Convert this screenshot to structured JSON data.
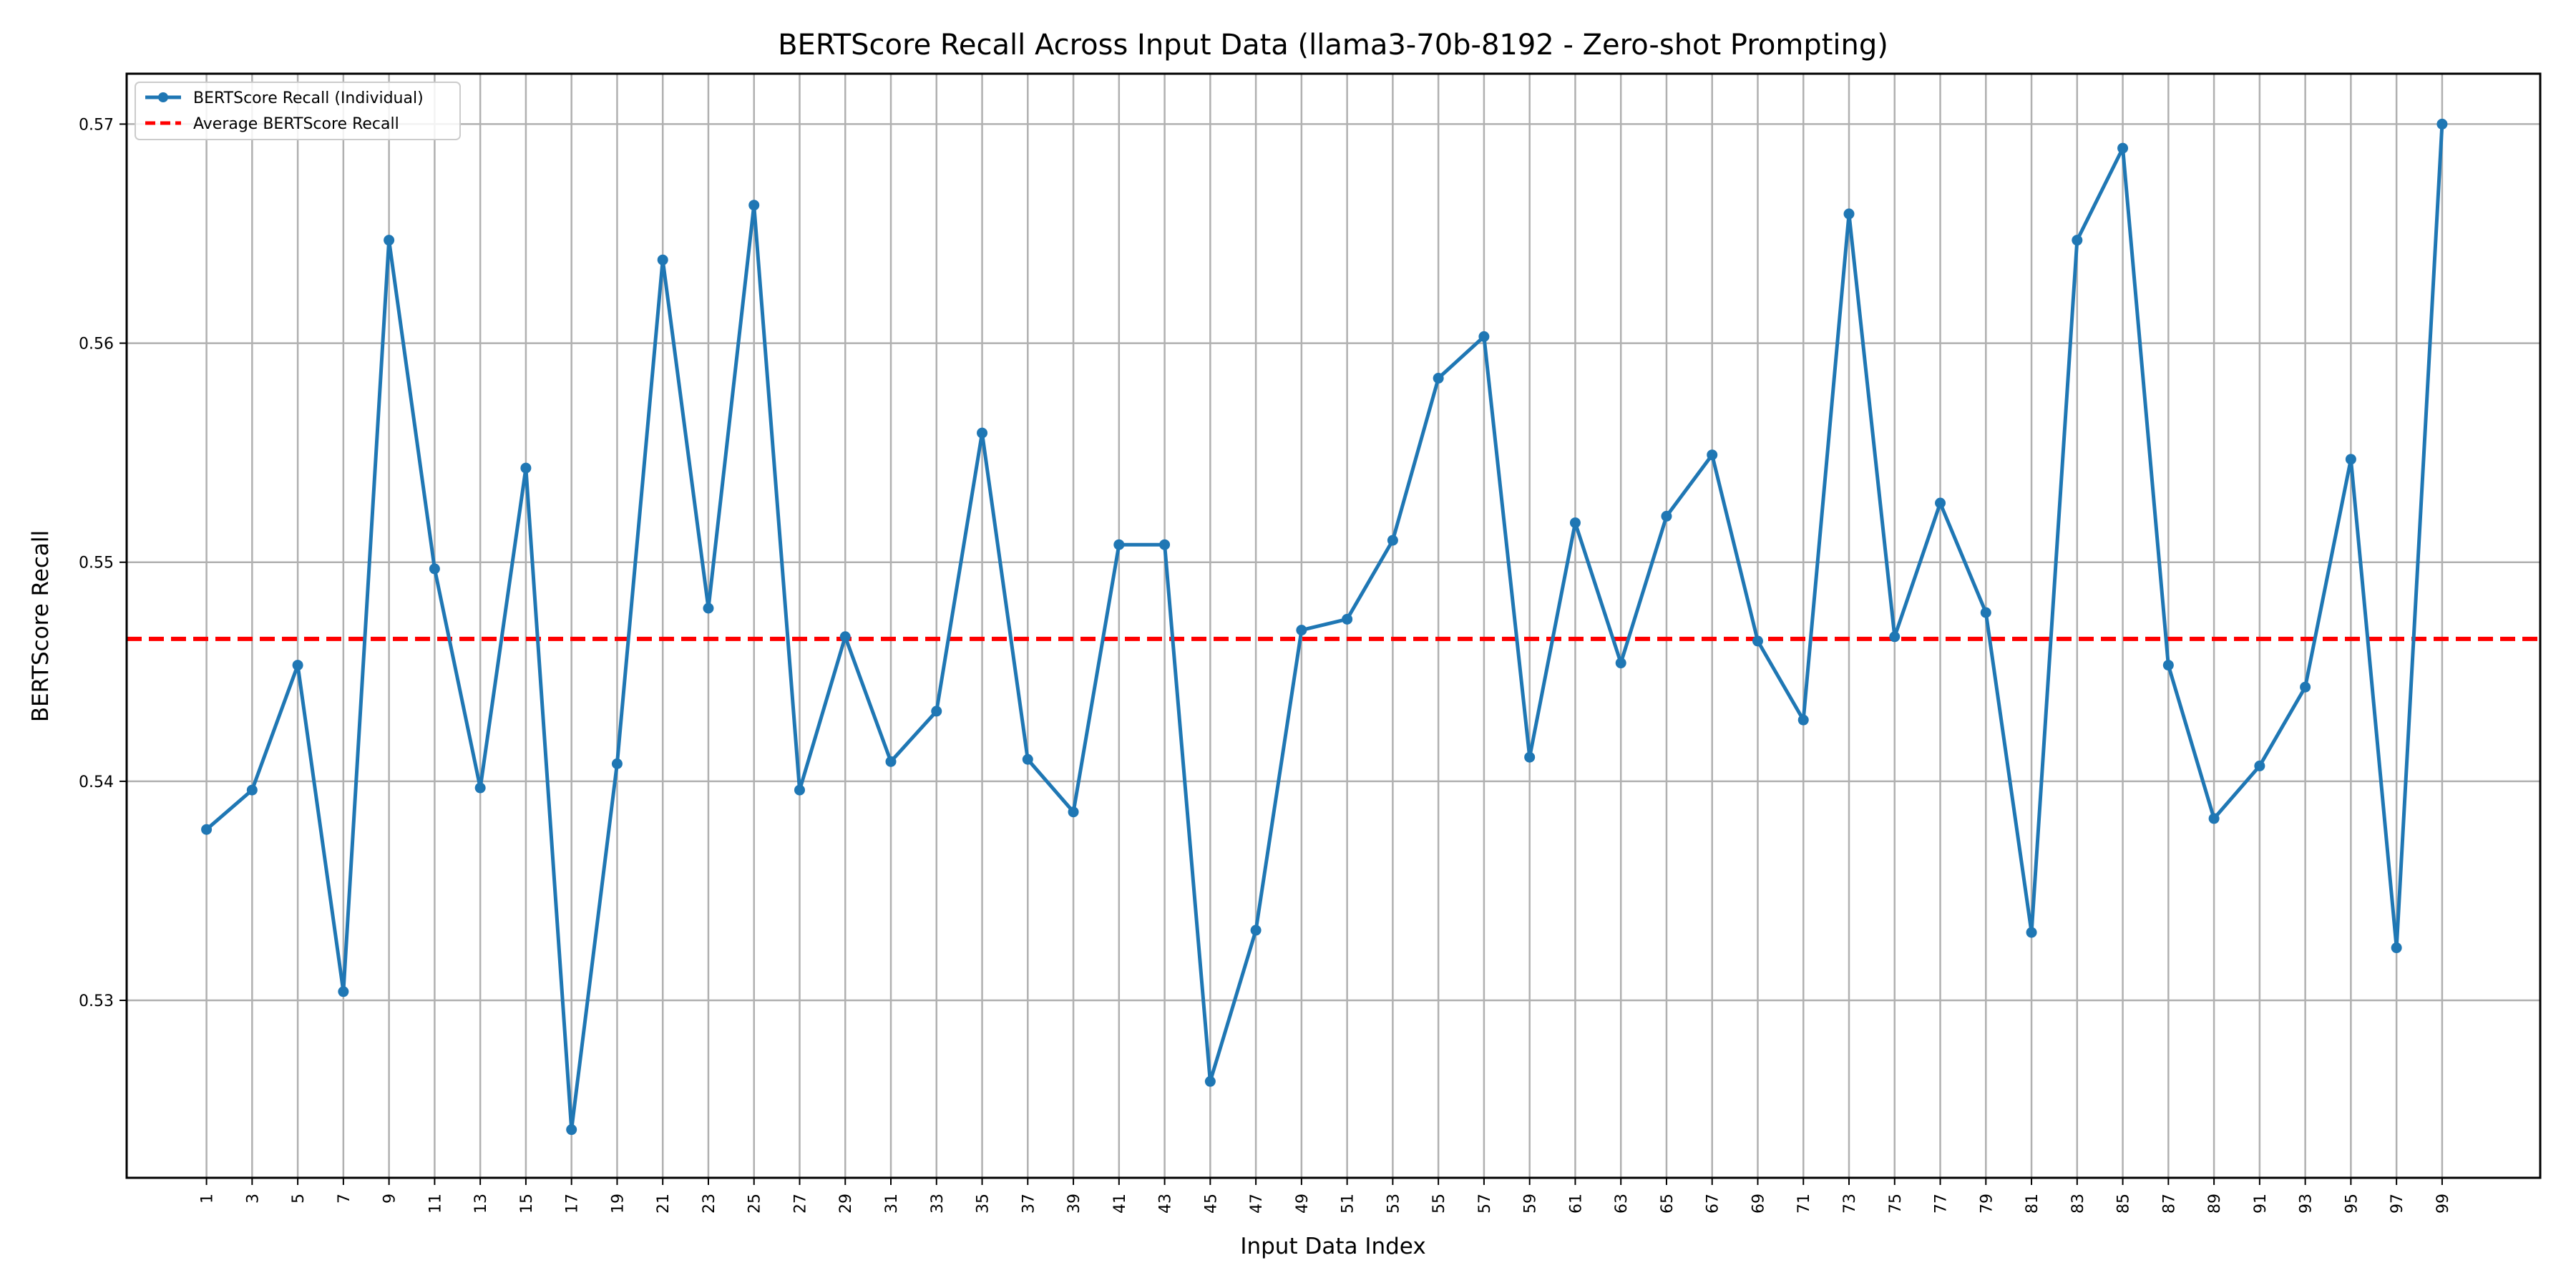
{
  "chart_data": {
    "type": "line",
    "title": "BERTScore Recall Across Input Data (llama3-70b-8192 - Zero-shot Prompting)",
    "xlabel": "Input Data Index",
    "ylabel": "BERTScore Recall",
    "xlim": [
      -2.5,
      103.3
    ],
    "ylim": [
      0.5219,
      0.5723
    ],
    "grid": true,
    "legend_position": "top-left",
    "xticks": [
      1,
      3,
      5,
      7,
      9,
      11,
      13,
      15,
      17,
      19,
      21,
      23,
      25,
      27,
      29,
      31,
      33,
      35,
      37,
      39,
      41,
      43,
      45,
      47,
      49,
      51,
      53,
      55,
      57,
      59,
      61,
      63,
      65,
      67,
      69,
      71,
      73,
      75,
      77,
      79,
      81,
      83,
      85,
      87,
      89,
      91,
      93,
      95,
      97,
      99
    ],
    "yticks": [
      0.53,
      0.54,
      0.55,
      0.56,
      0.57
    ],
    "ytick_labels": [
      "0.53",
      "0.54",
      "0.55",
      "0.56",
      "0.57"
    ],
    "series": [
      {
        "name": "BERTScore Recall (Individual)",
        "color": "#1f77b4",
        "style": "solid-with-markers",
        "x": [
          1,
          3,
          5,
          7,
          9,
          11,
          13,
          15,
          17,
          19,
          21,
          23,
          25,
          27,
          29,
          31,
          33,
          35,
          37,
          39,
          41,
          43,
          45,
          47,
          49,
          51,
          53,
          55,
          57,
          59,
          61,
          63,
          65,
          67,
          69,
          71,
          73,
          75,
          77,
          79,
          81,
          83,
          85,
          87,
          89,
          91,
          93,
          95,
          97,
          99
        ],
        "values": [
          0.5378,
          0.5396,
          0.5453,
          0.5304,
          0.5647,
          0.5497,
          0.5397,
          0.5543,
          0.5241,
          0.5408,
          0.5638,
          0.5479,
          0.5663,
          0.5396,
          0.5466,
          0.5409,
          0.5432,
          0.5559,
          0.541,
          0.5386,
          0.5508,
          0.5508,
          0.5263,
          0.5332,
          0.5469,
          0.5474,
          0.551,
          0.5584,
          0.5603,
          0.5411,
          0.5518,
          0.5454,
          0.5521,
          0.5549,
          0.5464,
          0.5428,
          0.5659,
          0.5466,
          0.5527,
          0.5477,
          0.5331,
          0.5647,
          0.5689,
          0.5453,
          0.5383,
          0.5407,
          0.5443,
          0.5547,
          0.5324,
          0.57
        ]
      },
      {
        "name": "Average BERTScore Recall",
        "color": "#ff0000",
        "style": "dashed",
        "value": 0.5465
      }
    ]
  }
}
